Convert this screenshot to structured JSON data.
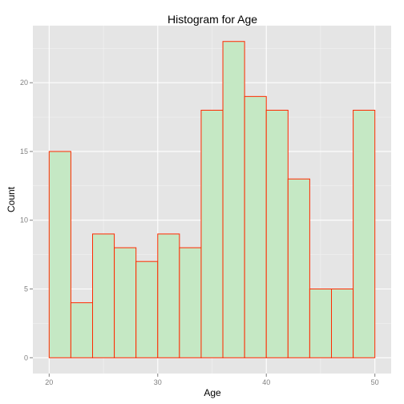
{
  "chart_data": {
    "type": "bar",
    "title": "Histogram for Age",
    "xlabel": "Age",
    "ylabel": "Count",
    "bins": [
      {
        "start": 20,
        "end": 22,
        "count": 15
      },
      {
        "start": 22,
        "end": 24,
        "count": 4
      },
      {
        "start": 24,
        "end": 26,
        "count": 9
      },
      {
        "start": 26,
        "end": 28,
        "count": 8
      },
      {
        "start": 28,
        "end": 30,
        "count": 7
      },
      {
        "start": 30,
        "end": 32,
        "count": 9
      },
      {
        "start": 32,
        "end": 34,
        "count": 8
      },
      {
        "start": 34,
        "end": 36,
        "count": 18
      },
      {
        "start": 36,
        "end": 38,
        "count": 23
      },
      {
        "start": 38,
        "end": 40,
        "count": 19
      },
      {
        "start": 40,
        "end": 42,
        "count": 18
      },
      {
        "start": 42,
        "end": 44,
        "count": 13
      },
      {
        "start": 44,
        "end": 46,
        "count": 5
      },
      {
        "start": 46,
        "end": 48,
        "count": 5
      },
      {
        "start": 48,
        "end": 50,
        "count": 18
      }
    ],
    "xlim": [
      18.5,
      51.5
    ],
    "ylim": [
      -1.15,
      24.15
    ],
    "x_ticks": [
      20,
      30,
      40,
      50
    ],
    "y_ticks": [
      0,
      5,
      10,
      15,
      20
    ],
    "grid": true,
    "colors": {
      "panel_background": "#e5e5e5",
      "grid_major": "#ffffff",
      "grid_minor": "#f2f2f2",
      "bar_fill": "#c5e8c4",
      "bar_outline": "#ff2a00"
    }
  }
}
